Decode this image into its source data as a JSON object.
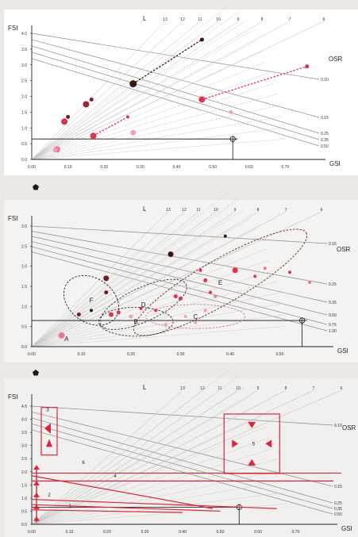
{
  "chart_data": [
    {
      "type": "scatter",
      "xlabel": "GSI",
      "ylabel": "FSI",
      "osr_label": "OSR",
      "l_label": "L",
      "xlim": [
        0,
        0.8
      ],
      "ylim": [
        0,
        4.0
      ],
      "x_ticks": [
        "0.00",
        "0.10",
        "0.20",
        "0.30",
        "0.40",
        "0.50",
        "0.60",
        "0.70"
      ],
      "y_ticks": [
        "0.0",
        "0.5",
        "1.0",
        "1.5",
        "2.0",
        "2.5",
        "3.0",
        "3.5",
        "4.0"
      ],
      "l_values": [
        "13",
        "12",
        "11",
        "10",
        "9",
        "8",
        "7",
        "6"
      ],
      "osr_values": [
        "0.10",
        "0.15",
        "0.25",
        "0.35",
        "0.50"
      ],
      "points": [
        {
          "x": 0.07,
          "y": 0.32,
          "size": 4,
          "color": "#e87a96"
        },
        {
          "x": 0.065,
          "y": 0.3,
          "size": 3,
          "color": "#f29ab0"
        },
        {
          "x": 0.09,
          "y": 1.2,
          "size": 4,
          "color": "#d8344f"
        },
        {
          "x": 0.1,
          "y": 1.35,
          "size": 2.5,
          "color": "#7a1c24"
        },
        {
          "x": 0.15,
          "y": 1.75,
          "size": 4,
          "color": "#9b2730"
        },
        {
          "x": 0.165,
          "y": 1.9,
          "size": 2.5,
          "color": "#7a1c24"
        },
        {
          "x": 0.17,
          "y": 0.75,
          "size": 4,
          "color": "#e0334f"
        },
        {
          "x": 0.28,
          "y": 2.4,
          "size": 4.5,
          "color": "#3b1512"
        },
        {
          "x": 0.47,
          "y": 3.8,
          "size": 2.5,
          "color": "#3b1512"
        },
        {
          "x": 0.28,
          "y": 0.85,
          "size": 3.5,
          "color": "#f2a0b4"
        },
        {
          "x": 0.55,
          "y": 1.5,
          "size": 2.5,
          "color": "#f2a0b4"
        },
        {
          "x": 0.47,
          "y": 1.9,
          "size": 4,
          "color": "#e0334f"
        },
        {
          "x": 0.76,
          "y": 2.95,
          "size": 2.5,
          "color": "#d8344f"
        },
        {
          "x": 0.265,
          "y": 1.35,
          "size": 2,
          "color": "#e0334f"
        }
      ],
      "dashed_links": [
        {
          "from": [
            0.28,
            2.4
          ],
          "to": [
            0.47,
            3.8
          ],
          "color": "#3b1512"
        },
        {
          "from": [
            0.17,
            0.75
          ],
          "to": [
            0.265,
            1.35
          ],
          "color": "#e0334f"
        },
        {
          "from": [
            0.47,
            1.9
          ],
          "to": [
            0.76,
            2.95
          ],
          "color": "#e0334f"
        }
      ],
      "reference": {
        "x": 0.555,
        "y": 0.65
      }
    },
    {
      "type": "scatter",
      "xlabel": "GSI",
      "ylabel": "FSI",
      "osr_label": "OSR",
      "l_label": "L",
      "xlim": [
        0,
        0.6
      ],
      "ylim": [
        0,
        3.0
      ],
      "x_ticks": [
        "0.00",
        "0.10",
        "0.20",
        "0.30",
        "0.40",
        "0.50"
      ],
      "y_ticks": [
        "0.0",
        "0.5",
        "1.0",
        "1.5",
        "2.0",
        "2.5",
        "3.0"
      ],
      "l_values": [
        "13",
        "12",
        "11",
        "10",
        "9",
        "8",
        "7",
        "6"
      ],
      "osr_values": [
        "0.15",
        "0.25",
        "0.35",
        "0.50",
        "0.75",
        "1.00"
      ],
      "clusters": [
        {
          "label": "A",
          "cx": 0.07,
          "cy": 0.2,
          "rx": 0,
          "ry": 0,
          "rot": 0,
          "color": "#333"
        },
        {
          "label": "B",
          "cx": 0.21,
          "cy": 0.62,
          "rx": 0.075,
          "ry": 0.36,
          "rot": 0,
          "color": "#333"
        },
        {
          "label": "C",
          "cx": 0.33,
          "cy": 0.75,
          "rx": 0.1,
          "ry": 0.3,
          "rot": 0,
          "color": "#c98090"
        },
        {
          "label": "D",
          "cx": 0.225,
          "cy": 1.05,
          "rx": 0.095,
          "ry": 0.42,
          "rot": -25,
          "color": "#333"
        },
        {
          "label": "E",
          "cx": 0.38,
          "cy": 1.6,
          "rx": 0.2,
          "ry": 0.55,
          "rot": -30,
          "color": "#6b1e22"
        },
        {
          "label": "F",
          "cx": 0.12,
          "cy": 1.15,
          "rx": 0.06,
          "ry": 0.55,
          "rot": 35,
          "color": "#222"
        }
      ],
      "points": [
        {
          "x": 0.06,
          "y": 0.28,
          "size": 4,
          "color": "#e87a96"
        },
        {
          "x": 0.095,
          "y": 0.8,
          "size": 2.5,
          "color": "#7a1c24"
        },
        {
          "x": 0.15,
          "y": 1.7,
          "size": 3.5,
          "color": "#6b1e22"
        },
        {
          "x": 0.15,
          "y": 1.35,
          "size": 2.5,
          "color": "#6b1e22"
        },
        {
          "x": 0.12,
          "y": 0.9,
          "size": 2,
          "color": "#3b1512"
        },
        {
          "x": 0.16,
          "y": 0.8,
          "size": 3,
          "color": "#e0334f"
        },
        {
          "x": 0.175,
          "y": 0.85,
          "size": 2.5,
          "color": "#d8344f"
        },
        {
          "x": 0.2,
          "y": 0.75,
          "size": 2.5,
          "color": "#f2a0b4"
        },
        {
          "x": 0.22,
          "y": 0.95,
          "size": 2,
          "color": "#d8344f"
        },
        {
          "x": 0.25,
          "y": 0.9,
          "size": 2,
          "color": "#e0334f"
        },
        {
          "x": 0.28,
          "y": 2.3,
          "size": 3.5,
          "color": "#3b1512"
        },
        {
          "x": 0.39,
          "y": 2.75,
          "size": 2,
          "color": "#3b1512"
        },
        {
          "x": 0.29,
          "y": 1.25,
          "size": 2.5,
          "color": "#e0334f"
        },
        {
          "x": 0.3,
          "y": 1.2,
          "size": 2.5,
          "color": "#d8344f"
        },
        {
          "x": 0.34,
          "y": 1.9,
          "size": 2,
          "color": "#d8344f"
        },
        {
          "x": 0.35,
          "y": 1.65,
          "size": 2.5,
          "color": "#e0334f"
        },
        {
          "x": 0.36,
          "y": 1.35,
          "size": 2,
          "color": "#d8344f"
        },
        {
          "x": 0.41,
          "y": 1.9,
          "size": 3.5,
          "color": "#e0334f"
        },
        {
          "x": 0.47,
          "y": 1.95,
          "size": 2,
          "color": "#e87a96"
        },
        {
          "x": 0.52,
          "y": 1.85,
          "size": 2,
          "color": "#d8344f"
        },
        {
          "x": 0.45,
          "y": 1.75,
          "size": 2,
          "color": "#e0334f"
        },
        {
          "x": 0.56,
          "y": 1.6,
          "size": 2,
          "color": "#e87a96"
        },
        {
          "x": 0.31,
          "y": 0.75,
          "size": 2,
          "color": "#f2a0b4"
        },
        {
          "x": 0.33,
          "y": 0.6,
          "size": 2,
          "color": "#f2a0b4"
        },
        {
          "x": 0.35,
          "y": 0.9,
          "size": 2,
          "color": "#f2a0b4"
        },
        {
          "x": 0.27,
          "y": 0.55,
          "size": 2,
          "color": "#f2a0b4"
        },
        {
          "x": 0.37,
          "y": 1.25,
          "size": 2,
          "color": "#e87a96"
        }
      ],
      "reference": {
        "x": 0.545,
        "y": 0.65
      }
    },
    {
      "type": "line",
      "xlabel": "GSI",
      "ylabel": "FSI",
      "osr_label": "OSR",
      "l_label": "L",
      "xlim": [
        0,
        0.8
      ],
      "ylim": [
        0,
        4.5
      ],
      "x_ticks": [
        "0.00",
        "0.10",
        "0.20",
        "0.30",
        "0.40",
        "0.50",
        "0.60",
        "0.70"
      ],
      "y_ticks": [
        "0.0",
        "0.5",
        "1.0",
        "1.5",
        "2.0",
        "2.5",
        "3.0",
        "3.5",
        "4.0",
        "4.5"
      ],
      "l_values": [
        "13",
        "12",
        "11",
        "10",
        "9",
        "8",
        "7",
        "6"
      ],
      "osr_values": [
        "0.10",
        "0.15",
        "0.25",
        "0.35",
        "0.50"
      ],
      "zone_labels": [
        "3",
        "6",
        "4",
        "5",
        "1",
        "2"
      ],
      "reference": {
        "x": 0.55,
        "y": 0.65
      }
    }
  ]
}
